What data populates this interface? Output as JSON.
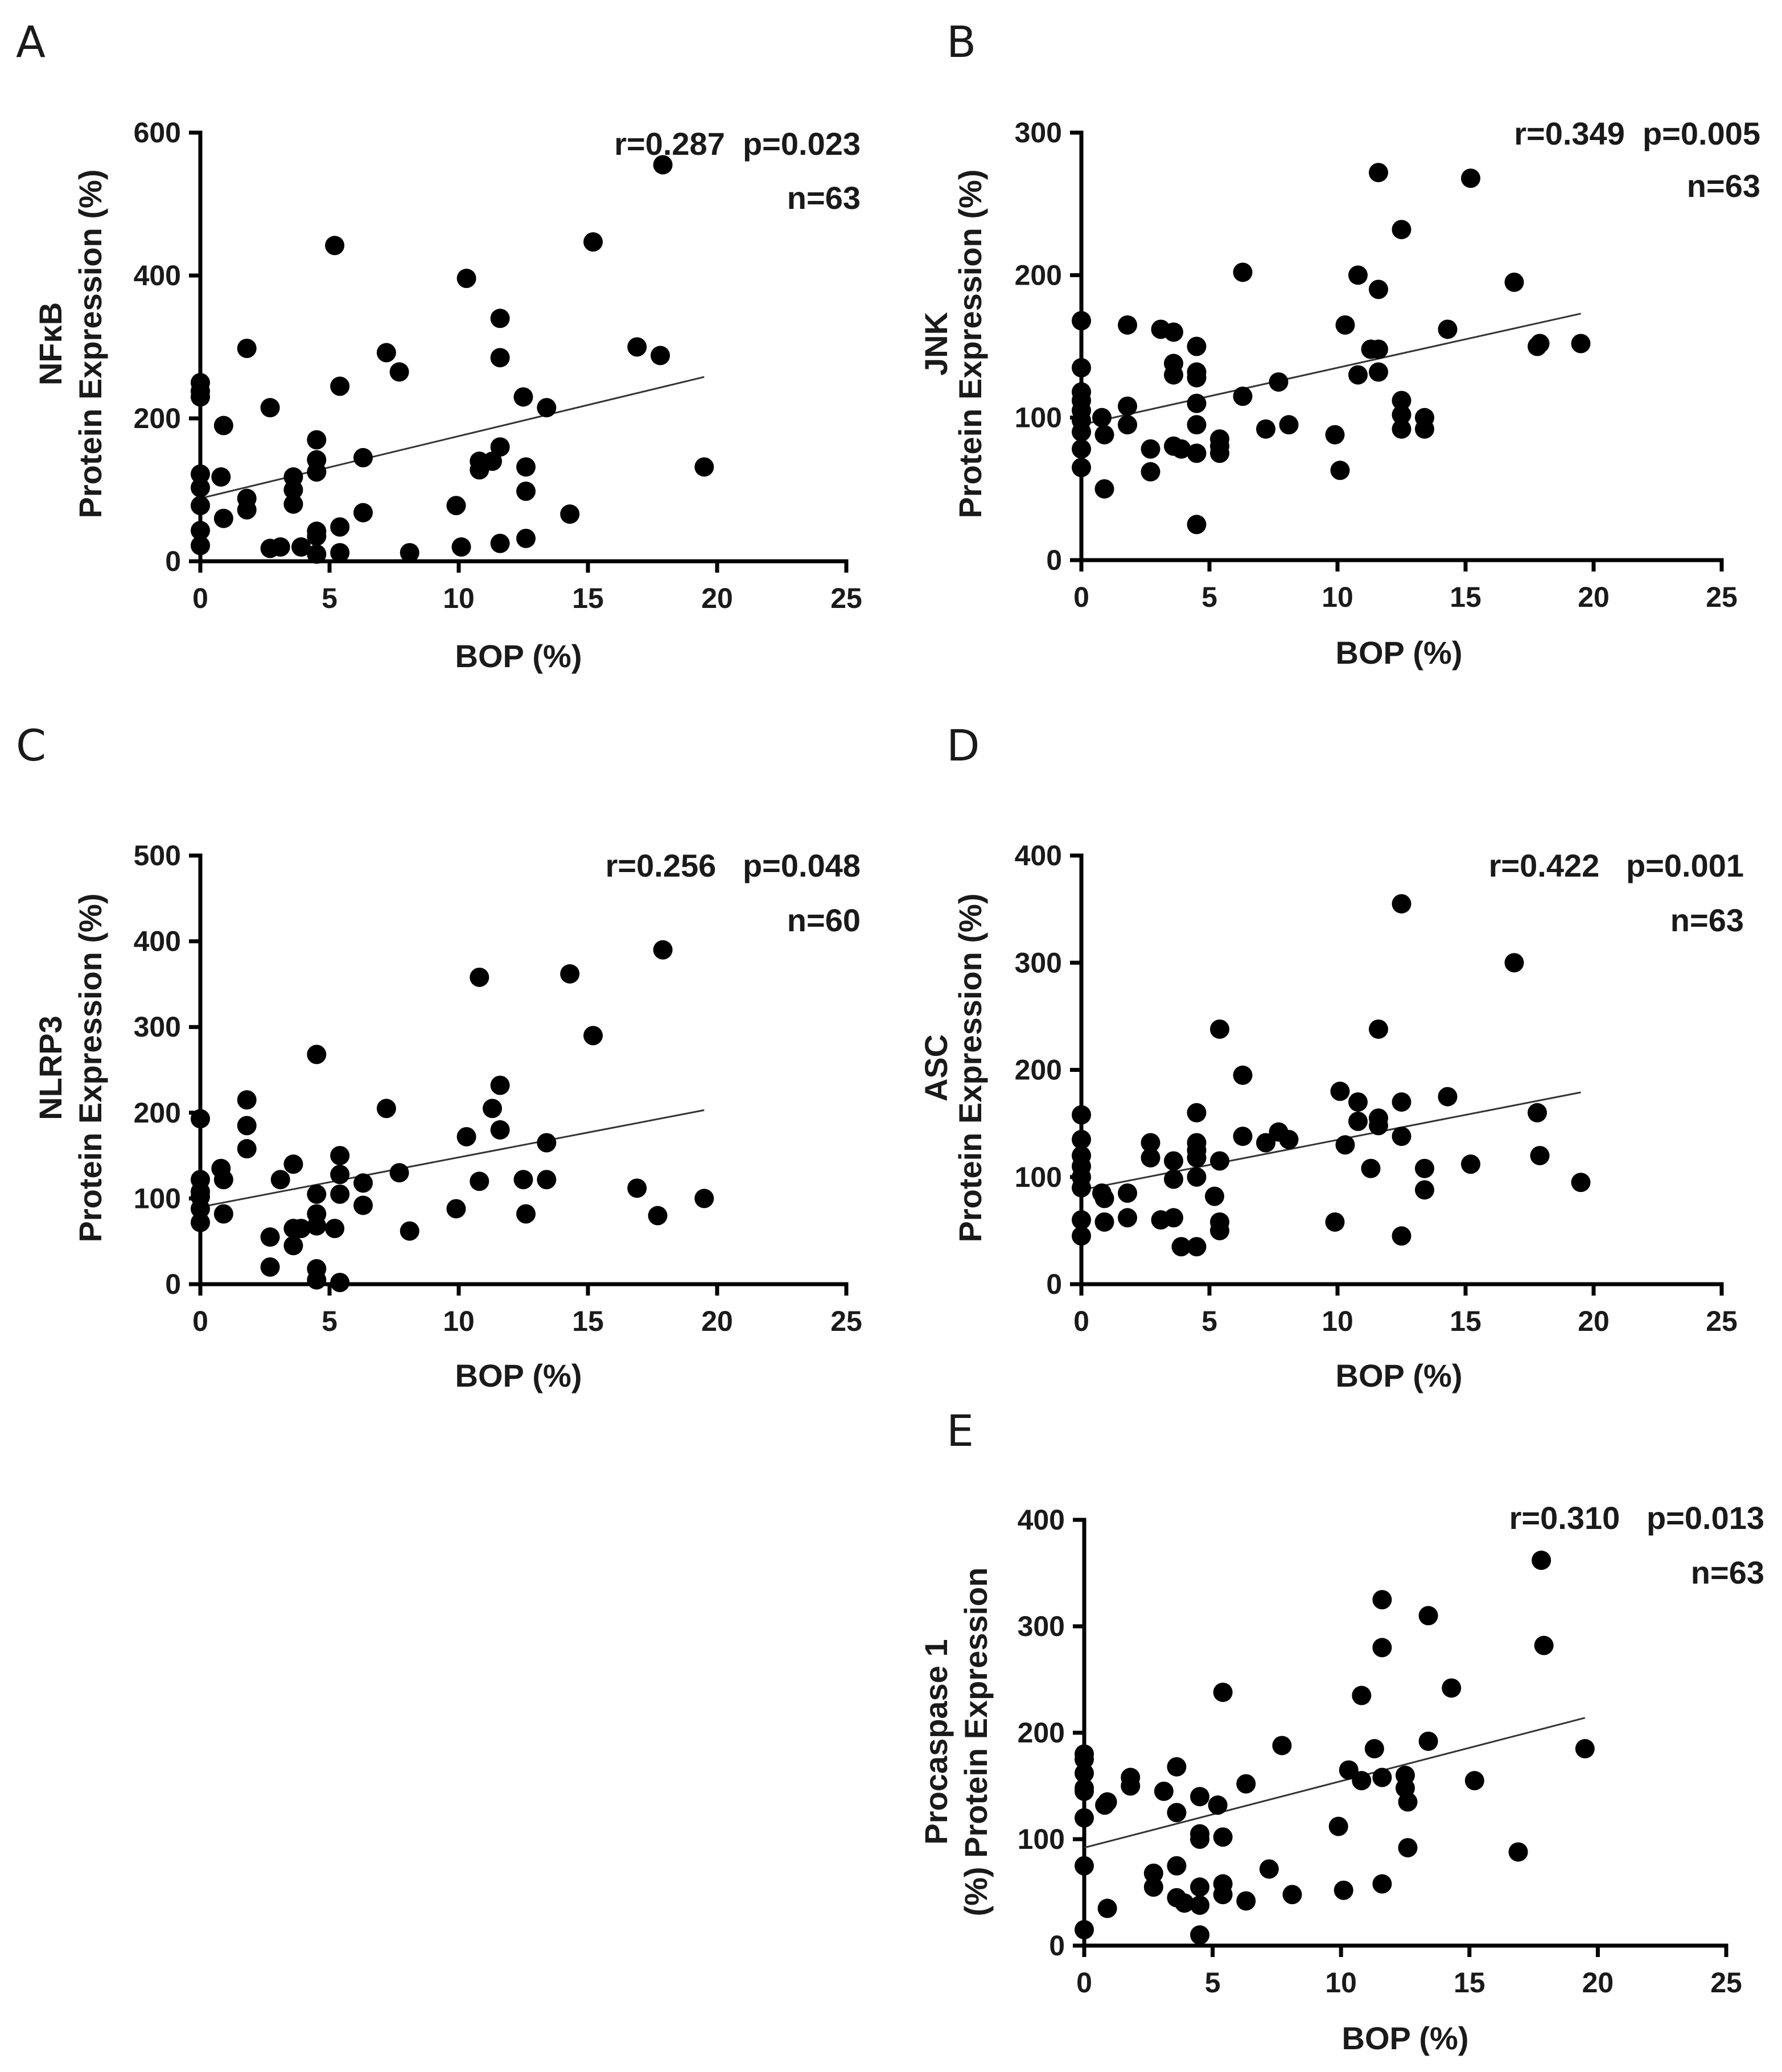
{
  "chart_data": [
    {
      "type": "scatter",
      "panel": "A",
      "ylabel_lines": [
        "NFκB",
        "Protein Expression (%)"
      ],
      "xlabel": "BOP (%)",
      "xlim": [
        0,
        25
      ],
      "ylim": [
        0,
        600
      ],
      "xticks": [
        0,
        5,
        10,
        15,
        20,
        25
      ],
      "yticks": [
        0,
        200,
        400,
        600
      ],
      "stats_line1": "r=0.287  p=0.023",
      "stats_line2": "n=63",
      "regression": {
        "x": [
          0,
          19.5
        ],
        "y": [
          88,
          258
        ]
      },
      "points": [
        [
          0,
          250
        ],
        [
          0,
          238
        ],
        [
          0,
          230
        ],
        [
          0,
          122
        ],
        [
          0,
          103
        ],
        [
          0,
          78
        ],
        [
          0,
          43
        ],
        [
          0,
          22
        ],
        [
          0.8,
          118
        ],
        [
          0.9,
          190
        ],
        [
          0.9,
          60
        ],
        [
          1.8,
          88
        ],
        [
          1.8,
          298
        ],
        [
          1.8,
          72
        ],
        [
          2.7,
          215
        ],
        [
          2.7,
          18
        ],
        [
          3.1,
          20
        ],
        [
          3.6,
          118
        ],
        [
          3.6,
          100
        ],
        [
          3.6,
          80
        ],
        [
          3.9,
          20
        ],
        [
          4.5,
          170
        ],
        [
          4.5,
          142
        ],
        [
          4.5,
          125
        ],
        [
          4.5,
          42
        ],
        [
          4.5,
          35
        ],
        [
          4.5,
          10
        ],
        [
          5.2,
          442
        ],
        [
          5.4,
          245
        ],
        [
          5.4,
          48
        ],
        [
          5.4,
          12
        ],
        [
          6.3,
          145
        ],
        [
          6.3,
          68
        ],
        [
          7.2,
          292
        ],
        [
          7.7,
          265
        ],
        [
          8.1,
          12
        ],
        [
          9.9,
          78
        ],
        [
          10.1,
          20
        ],
        [
          10.3,
          396
        ],
        [
          10.8,
          140
        ],
        [
          10.8,
          128
        ],
        [
          11.3,
          140
        ],
        [
          11.6,
          340
        ],
        [
          11.6,
          285
        ],
        [
          11.6,
          160
        ],
        [
          11.6,
          25
        ],
        [
          12.5,
          230
        ],
        [
          12.6,
          98
        ],
        [
          12.6,
          132
        ],
        [
          12.6,
          32
        ],
        [
          13.4,
          215
        ],
        [
          14.3,
          66
        ],
        [
          15.2,
          447
        ],
        [
          16.9,
          300
        ],
        [
          17.8,
          288
        ],
        [
          17.9,
          555
        ],
        [
          19.5,
          132
        ]
      ]
    },
    {
      "type": "scatter",
      "panel": "B",
      "ylabel_lines": [
        "JNK",
        "Protein Expression (%)"
      ],
      "xlabel": "BOP (%)",
      "xlim": [
        0,
        25
      ],
      "ylim": [
        0,
        300
      ],
      "xticks": [
        0,
        5,
        10,
        15,
        20,
        25
      ],
      "yticks": [
        0,
        100,
        200,
        300
      ],
      "stats_line1": "r=0.349  p=0.005",
      "stats_line2": "n=63",
      "regression": {
        "x": [
          0,
          19.5
        ],
        "y": [
          95,
          173
        ]
      },
      "points": [
        [
          0,
          168
        ],
        [
          0,
          135
        ],
        [
          0,
          118
        ],
        [
          0,
          112
        ],
        [
          0,
          105
        ],
        [
          0,
          98
        ],
        [
          0,
          90
        ],
        [
          0,
          78
        ],
        [
          0,
          65
        ],
        [
          0.8,
          100
        ],
        [
          0.9,
          88
        ],
        [
          0.9,
          50
        ],
        [
          1.8,
          165
        ],
        [
          1.8,
          108
        ],
        [
          1.8,
          95
        ],
        [
          2.7,
          78
        ],
        [
          2.7,
          62
        ],
        [
          3.1,
          162
        ],
        [
          3.6,
          160
        ],
        [
          3.6,
          138
        ],
        [
          3.6,
          130
        ],
        [
          3.6,
          80
        ],
        [
          3.9,
          78
        ],
        [
          4.5,
          150
        ],
        [
          4.5,
          132
        ],
        [
          4.5,
          128
        ],
        [
          4.5,
          110
        ],
        [
          4.5,
          95
        ],
        [
          4.5,
          75
        ],
        [
          4.5,
          25
        ],
        [
          5.4,
          85
        ],
        [
          5.4,
          80
        ],
        [
          5.4,
          75
        ],
        [
          6.3,
          202
        ],
        [
          6.3,
          115
        ],
        [
          7.2,
          92
        ],
        [
          7.7,
          125
        ],
        [
          8.1,
          95
        ],
        [
          9.9,
          88
        ],
        [
          10.1,
          63
        ],
        [
          10.3,
          165
        ],
        [
          10.8,
          200
        ],
        [
          10.8,
          130
        ],
        [
          11.3,
          148
        ],
        [
          11.6,
          272
        ],
        [
          11.6,
          190
        ],
        [
          11.6,
          148
        ],
        [
          11.6,
          132
        ],
        [
          12.5,
          232
        ],
        [
          12.5,
          112
        ],
        [
          12.5,
          102
        ],
        [
          12.5,
          92
        ],
        [
          13.4,
          100
        ],
        [
          13.4,
          92
        ],
        [
          14.3,
          162
        ],
        [
          15.2,
          268
        ],
        [
          16.9,
          195
        ],
        [
          17.8,
          150
        ],
        [
          17.9,
          152
        ],
        [
          19.5,
          152
        ]
      ]
    },
    {
      "type": "scatter",
      "panel": "C",
      "ylabel_lines": [
        "NLRP3",
        "Protein Expression (%)"
      ],
      "xlabel": "BOP (%)",
      "xlim": [
        0,
        25
      ],
      "ylim": [
        0,
        500
      ],
      "xticks": [
        0,
        5,
        10,
        15,
        20,
        25
      ],
      "yticks": [
        0,
        100,
        200,
        300,
        400,
        500
      ],
      "stats_line1": "r=0.256   p=0.048",
      "stats_line2": "n=60",
      "regression": {
        "x": [
          0,
          19.5
        ],
        "y": [
          90,
          203
        ]
      },
      "points": [
        [
          0,
          193
        ],
        [
          0,
          122
        ],
        [
          0,
          108
        ],
        [
          0,
          102
        ],
        [
          0,
          88
        ],
        [
          0,
          72
        ],
        [
          0.8,
          135
        ],
        [
          0.9,
          122
        ],
        [
          0.9,
          82
        ],
        [
          1.8,
          215
        ],
        [
          1.8,
          185
        ],
        [
          1.8,
          158
        ],
        [
          2.7,
          55
        ],
        [
          2.7,
          20
        ],
        [
          3.1,
          122
        ],
        [
          3.6,
          140
        ],
        [
          3.6,
          65
        ],
        [
          3.6,
          45
        ],
        [
          3.9,
          65
        ],
        [
          4.5,
          268
        ],
        [
          4.5,
          105
        ],
        [
          4.5,
          82
        ],
        [
          4.5,
          68
        ],
        [
          4.5,
          18
        ],
        [
          4.5,
          5
        ],
        [
          5.2,
          65
        ],
        [
          5.4,
          150
        ],
        [
          5.4,
          128
        ],
        [
          5.4,
          105
        ],
        [
          5.4,
          2
        ],
        [
          6.3,
          118
        ],
        [
          6.3,
          92
        ],
        [
          7.2,
          205
        ],
        [
          7.7,
          130
        ],
        [
          8.1,
          62
        ],
        [
          9.9,
          88
        ],
        [
          10.3,
          172
        ],
        [
          10.8,
          358
        ],
        [
          10.8,
          120
        ],
        [
          11.3,
          205
        ],
        [
          11.6,
          232
        ],
        [
          11.6,
          180
        ],
        [
          12.5,
          122
        ],
        [
          12.6,
          82
        ],
        [
          13.4,
          165
        ],
        [
          13.4,
          122
        ],
        [
          14.3,
          362
        ],
        [
          15.2,
          290
        ],
        [
          16.9,
          112
        ],
        [
          17.7,
          80
        ],
        [
          17.9,
          390
        ],
        [
          19.5,
          100
        ]
      ]
    },
    {
      "type": "scatter",
      "panel": "D",
      "ylabel_lines": [
        "ASC",
        "Protein Expression (%)"
      ],
      "xlabel": "BOP (%)",
      "xlim": [
        0,
        25
      ],
      "ylim": [
        0,
        400
      ],
      "xticks": [
        0,
        5,
        10,
        15,
        20,
        25
      ],
      "yticks": [
        0,
        100,
        200,
        300,
        400
      ],
      "stats_line1": "r=0.422   p=0.001",
      "stats_line2": "n=63",
      "regression": {
        "x": [
          0,
          19.5
        ],
        "y": [
          88,
          179
        ]
      },
      "points": [
        [
          0,
          158
        ],
        [
          0,
          135
        ],
        [
          0,
          120
        ],
        [
          0,
          110
        ],
        [
          0,
          100
        ],
        [
          0,
          90
        ],
        [
          0,
          60
        ],
        [
          0,
          45
        ],
        [
          0.8,
          85
        ],
        [
          0.9,
          80
        ],
        [
          0.9,
          58
        ],
        [
          1.8,
          85
        ],
        [
          1.8,
          62
        ],
        [
          2.7,
          132
        ],
        [
          2.7,
          118
        ],
        [
          3.1,
          60
        ],
        [
          3.6,
          115
        ],
        [
          3.6,
          98
        ],
        [
          3.6,
          62
        ],
        [
          3.9,
          35
        ],
        [
          4.5,
          160
        ],
        [
          4.5,
          132
        ],
        [
          4.5,
          125
        ],
        [
          4.5,
          118
        ],
        [
          4.5,
          100
        ],
        [
          4.5,
          35
        ],
        [
          5.2,
          82
        ],
        [
          5.4,
          238
        ],
        [
          5.4,
          115
        ],
        [
          5.4,
          58
        ],
        [
          5.4,
          50
        ],
        [
          6.3,
          195
        ],
        [
          6.3,
          138
        ],
        [
          7.2,
          132
        ],
        [
          7.7,
          142
        ],
        [
          8.1,
          135
        ],
        [
          9.9,
          58
        ],
        [
          10.1,
          180
        ],
        [
          10.3,
          130
        ],
        [
          10.8,
          170
        ],
        [
          10.8,
          152
        ],
        [
          11.3,
          108
        ],
        [
          11.6,
          238
        ],
        [
          11.6,
          155
        ],
        [
          11.6,
          148
        ],
        [
          12.5,
          170
        ],
        [
          12.5,
          138
        ],
        [
          12.5,
          45
        ],
        [
          13.4,
          108
        ],
        [
          13.4,
          88
        ],
        [
          14.3,
          175
        ],
        [
          15.2,
          112
        ],
        [
          16.9,
          300
        ],
        [
          17.8,
          160
        ],
        [
          17.9,
          120
        ],
        [
          19.5,
          95
        ],
        [
          12.5,
          355
        ]
      ]
    },
    {
      "type": "scatter",
      "panel": "E",
      "ylabel_lines": [
        "Procaspase 1",
        "(%) Protein Expression"
      ],
      "xlabel": "BOP (%)",
      "xlim": [
        0,
        25
      ],
      "ylim": [
        0,
        400
      ],
      "xticks": [
        0,
        5,
        10,
        15,
        20,
        25
      ],
      "yticks": [
        0,
        100,
        200,
        300,
        400
      ],
      "stats_line1": "r=0.310   p=0.013",
      "stats_line2": "n=63",
      "regression": {
        "x": [
          0,
          19.5
        ],
        "y": [
          92,
          214
        ]
      },
      "points": [
        [
          0,
          180
        ],
        [
          0,
          175
        ],
        [
          0,
          162
        ],
        [
          0,
          148
        ],
        [
          0,
          145
        ],
        [
          0,
          120
        ],
        [
          0,
          75
        ],
        [
          0,
          15
        ],
        [
          0.8,
          132
        ],
        [
          0.9,
          135
        ],
        [
          0.9,
          35
        ],
        [
          1.8,
          158
        ],
        [
          1.8,
          150
        ],
        [
          2.7,
          68
        ],
        [
          2.7,
          55
        ],
        [
          3.1,
          145
        ],
        [
          3.6,
          168
        ],
        [
          3.6,
          125
        ],
        [
          3.6,
          75
        ],
        [
          3.6,
          45
        ],
        [
          3.9,
          40
        ],
        [
          4.5,
          140
        ],
        [
          4.5,
          105
        ],
        [
          4.5,
          100
        ],
        [
          4.5,
          55
        ],
        [
          4.5,
          38
        ],
        [
          4.5,
          10
        ],
        [
          5.2,
          132
        ],
        [
          5.4,
          238
        ],
        [
          5.4,
          102
        ],
        [
          5.4,
          58
        ],
        [
          5.4,
          48
        ],
        [
          6.3,
          152
        ],
        [
          6.3,
          42
        ],
        [
          7.2,
          72
        ],
        [
          7.7,
          188
        ],
        [
          8.1,
          48
        ],
        [
          9.9,
          112
        ],
        [
          10.1,
          52
        ],
        [
          10.3,
          165
        ],
        [
          10.8,
          235
        ],
        [
          10.8,
          155
        ],
        [
          11.3,
          185
        ],
        [
          11.6,
          325
        ],
        [
          11.6,
          280
        ],
        [
          11.6,
          158
        ],
        [
          11.6,
          58
        ],
        [
          12.5,
          160
        ],
        [
          12.5,
          148
        ],
        [
          12.6,
          135
        ],
        [
          12.6,
          92
        ],
        [
          13.4,
          192
        ],
        [
          13.4,
          310
        ],
        [
          14.3,
          242
        ],
        [
          15.2,
          155
        ],
        [
          16.9,
          88
        ],
        [
          17.8,
          362
        ],
        [
          17.9,
          282
        ],
        [
          19.5,
          185
        ]
      ]
    }
  ]
}
